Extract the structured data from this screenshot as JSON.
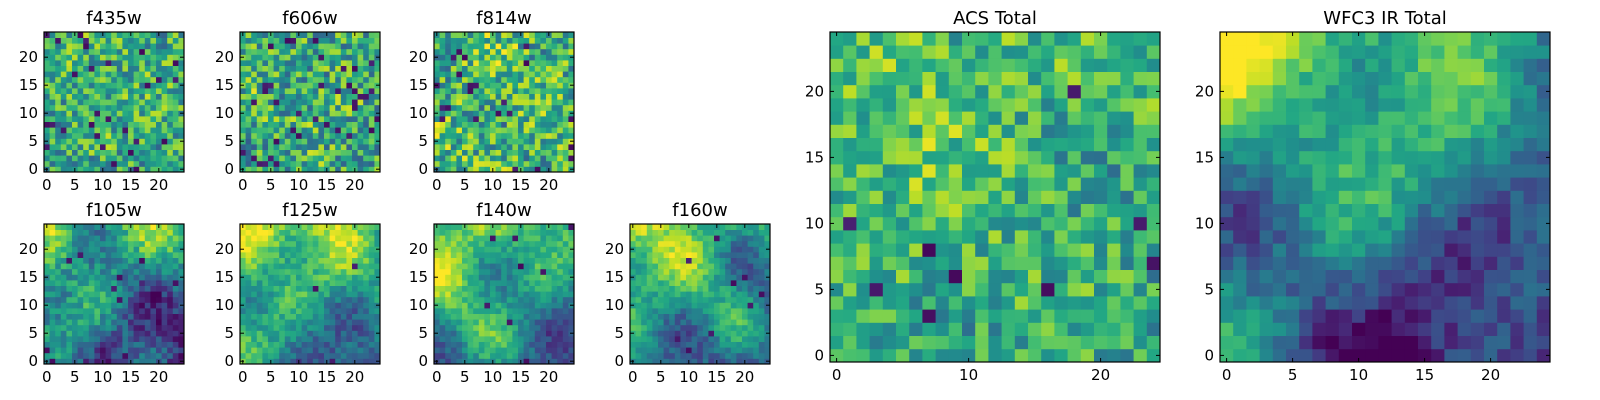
{
  "figure": {
    "colormap": "viridis",
    "grid_size": 25,
    "pixel_values": "random noise with smooth large-scale structure (values not labeled)"
  },
  "chart_data": [
    {
      "type": "heatmap",
      "title": "f435w",
      "x_ticks": [
        "0",
        "5",
        "10",
        "15",
        "20"
      ],
      "y_ticks": [
        "0",
        "5",
        "10",
        "15",
        "20"
      ],
      "xlim": [
        0,
        25
      ],
      "ylim": [
        0,
        25
      ],
      "grid": false
    },
    {
      "type": "heatmap",
      "title": "f606w",
      "x_ticks": [
        "0",
        "5",
        "10",
        "15",
        "20"
      ],
      "y_ticks": [
        "0",
        "5",
        "10",
        "15",
        "20"
      ],
      "xlim": [
        0,
        25
      ],
      "ylim": [
        0,
        25
      ],
      "grid": false
    },
    {
      "type": "heatmap",
      "title": "f814w",
      "x_ticks": [
        "0",
        "5",
        "10",
        "15",
        "20"
      ],
      "y_ticks": [
        "0",
        "5",
        "10",
        "15",
        "20"
      ],
      "xlim": [
        0,
        25
      ],
      "ylim": [
        0,
        25
      ],
      "grid": false
    },
    {
      "type": "heatmap",
      "title": "f105w",
      "x_ticks": [
        "0",
        "5",
        "10",
        "15",
        "20"
      ],
      "y_ticks": [
        "0",
        "5",
        "10",
        "15",
        "20"
      ],
      "xlim": [
        0,
        25
      ],
      "ylim": [
        0,
        25
      ],
      "grid": false
    },
    {
      "type": "heatmap",
      "title": "f125w",
      "x_ticks": [
        "0",
        "5",
        "10",
        "15",
        "20"
      ],
      "y_ticks": [
        "0",
        "5",
        "10",
        "15",
        "20"
      ],
      "xlim": [
        0,
        25
      ],
      "ylim": [
        0,
        25
      ],
      "grid": false
    },
    {
      "type": "heatmap",
      "title": "f140w",
      "x_ticks": [
        "0",
        "5",
        "10",
        "15",
        "20"
      ],
      "y_ticks": [
        "0",
        "5",
        "10",
        "15",
        "20"
      ],
      "xlim": [
        0,
        25
      ],
      "ylim": [
        0,
        25
      ],
      "grid": false
    },
    {
      "type": "heatmap",
      "title": "f160w",
      "x_ticks": [
        "0",
        "5",
        "10",
        "15",
        "20"
      ],
      "y_ticks": [
        "0",
        "5",
        "10",
        "15",
        "20"
      ],
      "xlim": [
        0,
        25
      ],
      "ylim": [
        0,
        25
      ],
      "grid": false
    },
    {
      "type": "heatmap",
      "title": "ACS Total",
      "x_ticks": [
        "0",
        "10",
        "20"
      ],
      "y_ticks": [
        "0",
        "5",
        "10",
        "15",
        "20"
      ],
      "xlim": [
        0,
        25
      ],
      "ylim": [
        0,
        25
      ],
      "grid": false
    },
    {
      "type": "heatmap",
      "title": "WFC3 IR Total",
      "x_ticks": [
        "0",
        "5",
        "10",
        "15",
        "20"
      ],
      "y_ticks": [
        "0",
        "5",
        "10",
        "15",
        "20"
      ],
      "xlim": [
        0,
        25
      ],
      "ylim": [
        0,
        25
      ],
      "grid": false
    }
  ]
}
